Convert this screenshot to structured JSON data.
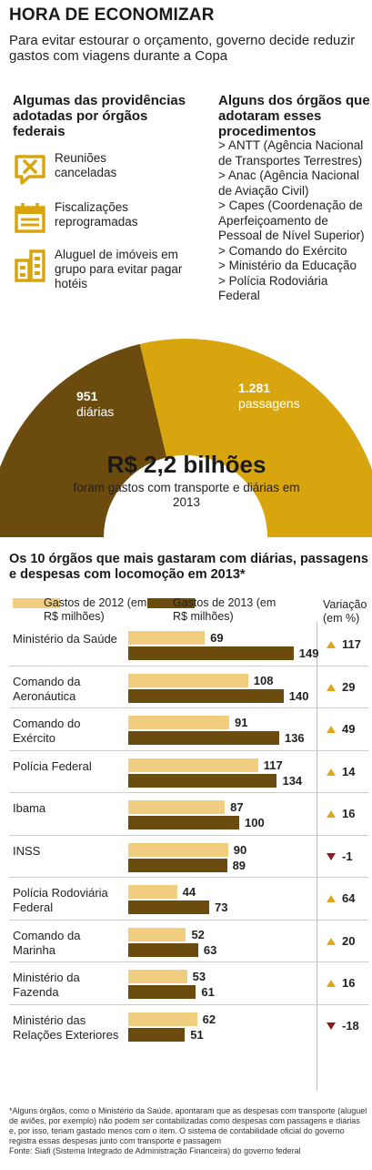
{
  "header": {
    "title": "HORA DE ECONOMIZAR",
    "subtitle": "Para evitar estourar o orçamento, governo decide reduzir gastos com viagens durante a Copa"
  },
  "actions": {
    "heading": "Algumas das providências adotadas por órgãos federais",
    "items": [
      {
        "icon": "cancelled-meeting-icon",
        "text": "Reuniões canceladas"
      },
      {
        "icon": "calendar-icon",
        "text": "Fiscalizações reprogramadas"
      },
      {
        "icon": "buildings-icon",
        "text": "Aluguel de imóveis em grupo para evitar pagar hotéis"
      }
    ]
  },
  "organs": {
    "heading": "Alguns dos órgãos que adotaram esses procedimentos",
    "items": [
      "> ANTT (Agência Nacional de Transportes Terrestres)",
      "> Anac (Agência Nacional de Aviação Civil)",
      "> Capes (Coordenação de Aperfeiçoamento de Pessoal de Nível Superior)",
      "> Comando do Exército",
      "> Ministério da Educação",
      "> Polícia Rodoviária Federal"
    ]
  },
  "colors": {
    "accent_gold": "#d9a50f",
    "dark_brown": "#6b4b0e",
    "light_tan": "#f0cd7f",
    "up_arrow": "#e2a61a",
    "down_arrow": "#8c1a1a"
  },
  "totals": {
    "big": "R$ 2,2 bilhões",
    "note": "foram gastos com transporte e diárias em 2013",
    "diarias_count": "951",
    "diarias_label": "diárias",
    "passagens_count": "1.281",
    "passagens_label": "passagens"
  },
  "chart_data": {
    "type": "bar",
    "orientation": "horizontal",
    "title": "Os 10 órgãos que mais gastaram com diárias, passagens e despesas com locomoção em 2013*",
    "categories": [
      "Ministério da Saúde",
      "Comando da Aeronáutica",
      "Comando do Exército",
      "Polícia Federal",
      "Ibama",
      "INSS",
      "Polícia Rodoviária Federal",
      "Comando da Marinha",
      "Ministério da Fazenda",
      "Ministério das Relações Exteriores"
    ],
    "series": [
      {
        "name": "Gastos de 2012 (em R$ milhões)",
        "values": [
          69,
          108,
          91,
          117,
          87,
          90,
          44,
          52,
          53,
          62
        ]
      },
      {
        "name": "Gastos de 2013 (em R$ milhões)",
        "values": [
          149,
          140,
          136,
          134,
          100,
          89,
          73,
          63,
          61,
          51
        ]
      }
    ],
    "variation": {
      "label": "Variação (em %)",
      "values": [
        117,
        29,
        49,
        14,
        16,
        -1,
        64,
        20,
        16,
        -18
      ]
    },
    "footnote": "*Alguns órgãos, como o Ministério da Saúde, apontaram que as despesas com transporte (aluguel de aviões, por exemplo) não podem ser contabilizadas como despesas com passagens e diárias e, por isso, teriam gastado menos com o item. O sistema de contabilidade oficial do governo registra essas despesas junto com transporte e passagem",
    "source": "Fonte: Siafi (Sistema Integrado de Administração Financeira) do governo federal"
  }
}
